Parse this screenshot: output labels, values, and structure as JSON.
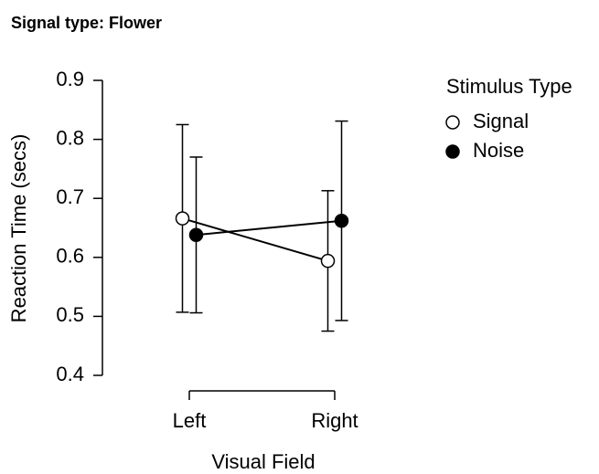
{
  "chart_data": {
    "type": "line",
    "title": "Signal type: Flower",
    "xlabel": "Visual Field",
    "ylabel": "Reaction Time (secs)",
    "categories": [
      "Left",
      "Right"
    ],
    "series": [
      {
        "name": "Signal",
        "color": "#ffffff",
        "values": [
          0.666,
          0.594
        ],
        "errors": [
          0.159,
          0.119
        ]
      },
      {
        "name": "Noise",
        "color": "#000000",
        "values": [
          0.638,
          0.662
        ],
        "errors": [
          0.132,
          0.169
        ]
      }
    ],
    "ylim": [
      0.4,
      0.9
    ],
    "yticks": [
      0.4,
      0.5,
      0.6,
      0.7,
      0.8,
      0.9
    ],
    "legend_title": "Stimulus Type",
    "legend": "right"
  }
}
